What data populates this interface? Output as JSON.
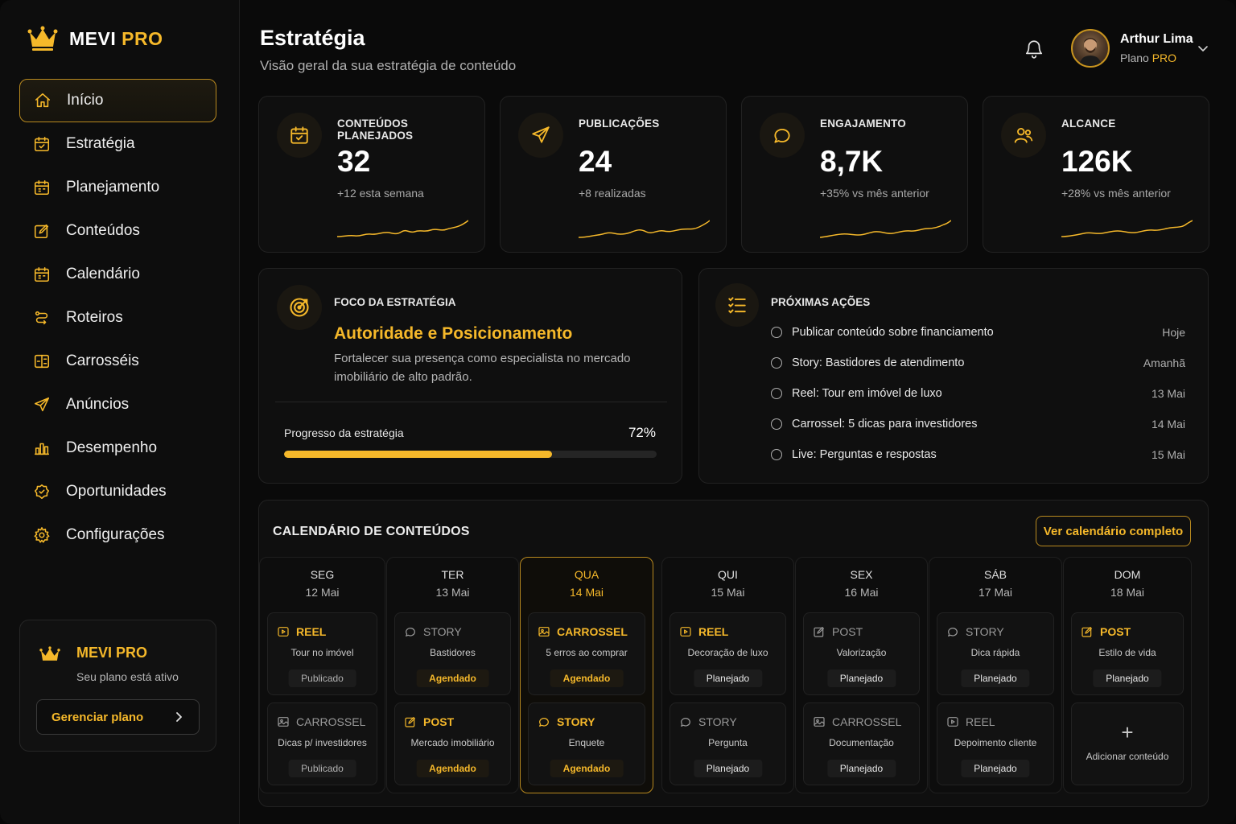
{
  "brand": {
    "mevi": "MEVI",
    "pro": "PRO"
  },
  "nav": [
    {
      "label": "Início",
      "icon": "home-icon",
      "active": true
    },
    {
      "label": "Estratégia",
      "icon": "calendar-check-icon"
    },
    {
      "label": "Planejamento",
      "icon": "calendar-icon"
    },
    {
      "label": "Conteúdos",
      "icon": "edit-icon"
    },
    {
      "label": "Calendário",
      "icon": "calendar-icon"
    },
    {
      "label": "Roteiros",
      "icon": "route-icon"
    },
    {
      "label": "Carrosséis",
      "icon": "carousel-icon"
    },
    {
      "label": "Anúncios",
      "icon": "send-icon"
    },
    {
      "label": "Desempenho",
      "icon": "chart-icon"
    },
    {
      "label": "Oportunidades",
      "icon": "badge-icon"
    },
    {
      "label": "Configurações",
      "icon": "gear-icon"
    }
  ],
  "plan": {
    "title": "MEVI PRO",
    "subtitle": "Seu plano está ativo",
    "button": "Gerenciar plano"
  },
  "header": {
    "title": "Estratégia",
    "subtitle": "Visão geral da sua estratégia de conteúdo"
  },
  "user": {
    "name": "Arthur Lima",
    "plan_prefix": "Plano",
    "plan_name": "PRO"
  },
  "stats": [
    {
      "label": "CONTEÚDOS PLANEJADOS",
      "value": "32",
      "delta": "+12 esta semana",
      "icon": "calendar-check-icon"
    },
    {
      "label": "PUBLICAÇÕES",
      "value": "24",
      "delta": "+8 realizadas",
      "icon": "send-icon"
    },
    {
      "label": "ENGAJAMENTO",
      "value": "8,7K",
      "delta": "+35% vs mês anterior",
      "icon": "chat-icon"
    },
    {
      "label": "ALCANCE",
      "value": "126K",
      "delta": "+28% vs mês anterior",
      "icon": "users-icon"
    }
  ],
  "focus": {
    "label": "FOCO DA ESTRATÉGIA",
    "headline": "Autoridade e Posicionamento",
    "description": "Fortalecer sua presença como especialista no mercado imobiliário de alto padrão.",
    "progress_label": "Progresso da estratégia",
    "progress_text": "72%",
    "progress": 0.72
  },
  "actions": {
    "label": "PRÓXIMAS AÇÕES",
    "items": [
      {
        "text": "Publicar conteúdo sobre financiamento",
        "when": "Hoje"
      },
      {
        "text": "Story: Bastidores de atendimento",
        "when": "Amanhã"
      },
      {
        "text": "Reel: Tour em imóvel de luxo",
        "when": "13 Mai"
      },
      {
        "text": "Carrossel: 5 dicas para investidores",
        "when": "14 Mai"
      },
      {
        "text": "Live: Perguntas e respostas",
        "when": "15 Mai"
      }
    ]
  },
  "calendar": {
    "label": "CALENDÁRIO DE CONTEÚDOS",
    "button": "Ver calendário completo",
    "add_label": "Adicionar conteúdo",
    "days": [
      {
        "name": "SEG",
        "date": "12 Mai",
        "today": false,
        "items": [
          {
            "type": "REEL",
            "title": "Tour no imóvel",
            "status": "Publicado",
            "accent": true
          },
          {
            "type": "CARROSSEL",
            "title": "Dicas p/ investidores",
            "status": "Publicado",
            "accent": false
          }
        ]
      },
      {
        "name": "TER",
        "date": "13 Mai",
        "today": false,
        "items": [
          {
            "type": "STORY",
            "title": "Bastidores",
            "status": "Agendado",
            "accent": false
          },
          {
            "type": "POST",
            "title": "Mercado imobiliário",
            "status": "Agendado",
            "accent": true
          }
        ]
      },
      {
        "name": "QUA",
        "date": "14 Mai",
        "today": true,
        "items": [
          {
            "type": "CARROSSEL",
            "title": "5 erros ao comprar",
            "status": "Agendado",
            "accent": true
          },
          {
            "type": "STORY",
            "title": "Enquete",
            "status": "Agendado",
            "accent": true
          }
        ]
      },
      {
        "name": "QUI",
        "date": "15 Mai",
        "today": false,
        "items": [
          {
            "type": "REEL",
            "title": "Decoração de luxo",
            "status": "Planejado",
            "accent": true
          },
          {
            "type": "STORY",
            "title": "Pergunta",
            "status": "Planejado",
            "accent": false
          }
        ]
      },
      {
        "name": "SEX",
        "date": "16 Mai",
        "today": false,
        "items": [
          {
            "type": "POST",
            "title": "Valorização",
            "status": "Planejado",
            "accent": false
          },
          {
            "type": "CARROSSEL",
            "title": "Documentação",
            "status": "Planejado",
            "accent": false
          }
        ]
      },
      {
        "name": "SÁB",
        "date": "17 Mai",
        "today": false,
        "items": [
          {
            "type": "STORY",
            "title": "Dica rápida",
            "status": "Planejado",
            "accent": false
          },
          {
            "type": "REEL",
            "title": "Depoimento cliente",
            "status": "Planejado",
            "accent": false
          }
        ]
      },
      {
        "name": "DOM",
        "date": "18 Mai",
        "today": false,
        "items": [
          {
            "type": "POST",
            "title": "Estilo de vida",
            "status": "Planejado",
            "accent": true
          }
        ]
      }
    ]
  },
  "colors": {
    "accent": "#f5b82a",
    "background": "#0a0a0a",
    "card": "#0f0f0f"
  }
}
